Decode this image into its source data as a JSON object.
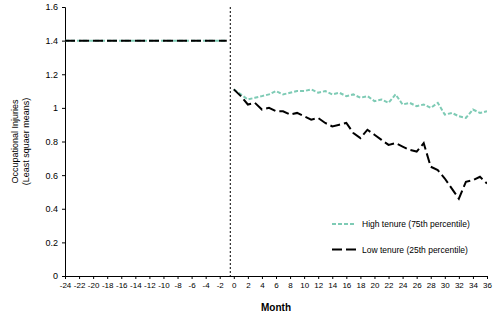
{
  "chart_data": {
    "type": "line",
    "x_label": "Month",
    "y_label": [
      "Occupational Injuries",
      "(Least squaer means)"
    ],
    "x": [
      -24,
      -23,
      -22,
      -21,
      -20,
      -19,
      -18,
      -17,
      -16,
      -15,
      -14,
      -13,
      -12,
      -11,
      -10,
      -9,
      -8,
      -7,
      -6,
      -5,
      -4,
      -3,
      -2,
      -1,
      -0.5,
      0,
      1,
      2,
      3,
      4,
      5,
      6,
      7,
      8,
      9,
      10,
      11,
      12,
      13,
      14,
      15,
      16,
      17,
      18,
      19,
      20,
      21,
      22,
      23,
      24,
      25,
      26,
      27,
      28,
      29,
      30,
      31,
      32,
      33,
      34,
      35,
      36
    ],
    "series": [
      {
        "name": "High tenure (75th percentile)",
        "color": "#7ecbb5",
        "line_style": "dashed",
        "values": [
          1.4,
          1.4,
          1.4,
          1.4,
          1.4,
          1.4,
          1.4,
          1.4,
          1.4,
          1.4,
          1.4,
          1.4,
          1.4,
          1.4,
          1.4,
          1.4,
          1.4,
          1.4,
          1.4,
          1.4,
          1.4,
          1.4,
          1.4,
          1.4,
          null,
          1.11,
          1.08,
          1.05,
          1.06,
          1.07,
          1.08,
          1.1,
          1.08,
          1.09,
          1.1,
          1.1,
          1.11,
          1.09,
          1.1,
          1.08,
          1.09,
          1.07,
          1.08,
          1.06,
          1.07,
          1.04,
          1.05,
          1.03,
          1.08,
          1.02,
          1.03,
          1.01,
          1.02,
          1.0,
          1.03,
          0.96,
          0.97,
          0.95,
          0.94,
          0.99,
          0.97,
          0.98
        ]
      },
      {
        "name": "Low tenure (25th percentile)",
        "color": "#000000",
        "line_style": "longdash",
        "values": [
          1.4,
          1.4,
          1.4,
          1.4,
          1.4,
          1.4,
          1.4,
          1.4,
          1.4,
          1.4,
          1.4,
          1.4,
          1.4,
          1.4,
          1.4,
          1.4,
          1.4,
          1.4,
          1.4,
          1.4,
          1.4,
          1.4,
          1.4,
          1.4,
          null,
          1.11,
          1.07,
          1.02,
          1.03,
          0.99,
          1.0,
          0.98,
          0.98,
          0.96,
          0.97,
          0.95,
          0.93,
          0.94,
          0.91,
          0.89,
          0.9,
          0.91,
          0.85,
          0.82,
          0.87,
          0.84,
          0.81,
          0.78,
          0.79,
          0.77,
          0.75,
          0.74,
          0.79,
          0.65,
          0.63,
          0.58,
          0.52,
          0.46,
          0.56,
          0.57,
          0.59,
          0.55
        ]
      }
    ],
    "vline_x": -0.5,
    "xlim": [
      -24,
      36
    ],
    "xticks": [
      -24,
      -22,
      -20,
      -18,
      -16,
      -14,
      -12,
      -10,
      -8,
      -6,
      -4,
      -2,
      0,
      2,
      4,
      6,
      8,
      10,
      12,
      14,
      16,
      18,
      20,
      22,
      24,
      26,
      28,
      30,
      32,
      34,
      36
    ],
    "ylim": [
      0,
      1.6
    ],
    "yticks": [
      0,
      0.2,
      0.4,
      0.6,
      0.8,
      1,
      1.2,
      1.4,
      1.6
    ],
    "grid": false,
    "legend": "lower right"
  }
}
